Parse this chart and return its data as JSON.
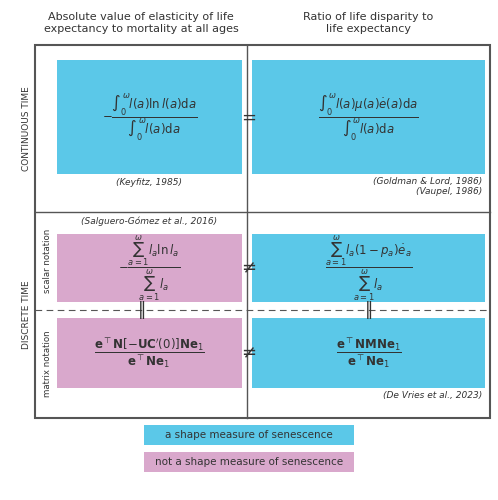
{
  "title_left": "Absolute value of elasticity of life\nexpectancy to mortality at all ages",
  "title_right": "Ratio of life disparity to\nlife expectancy",
  "row_label_continuous": "CONTINUOUS TIME",
  "row_label_discrete": "DISCRETE TIME",
  "label_scalar": "scalar notation",
  "label_matrix": "matrix notation",
  "cyan_color": "#5BC8E8",
  "pink_color": "#D9A8CC",
  "bg_color": "#FFFFFF",
  "border_color": "#555555",
  "text_color": "#333333",
  "formula_continuous_left": "$-\\dfrac{\\int_0^{\\omega} l(a)\\ln l(a)\\mathrm{d}a}{\\int_0^{\\omega} l(a)\\mathrm{d}a}$",
  "formula_continuous_right": "$\\dfrac{\\int_0^{\\omega} l(a)\\mu(a)\\dot{e}(a)\\mathrm{d}a}{\\int_0^{\\omega} l(a)\\mathrm{d}a}$",
  "formula_scalar_left": "$-\\dfrac{\\sum_{a=1}^{\\omega} l_a \\ln l_a}{\\sum_{a=1}^{\\omega} l_a}$",
  "formula_scalar_right": "$\\dfrac{\\sum_{a=1}^{\\omega} l_a(1-p_a)\\dot{e}_a}{\\sum_{a=1}^{\\omega} l_a}$",
  "formula_matrix_left": "$\\dfrac{\\mathbf{e}^\\top \\mathbf{N}[-\\mathbf{U}\\mathbf{C}'(0)]\\mathbf{N}\\mathbf{e}_1}{\\mathbf{e}^\\top \\mathbf{N}\\mathbf{e}_1}$",
  "formula_matrix_right": "$\\dfrac{\\mathbf{e}^\\top \\mathbf{N}\\mathbf{M}\\mathbf{N}\\mathbf{e}_1}{\\mathbf{e}^\\top \\mathbf{N}\\mathbf{e}_1}$",
  "cite_keyfitz": "(Keyfitz, 1985)",
  "cite_goldman": "(Goldman & Lord, 1986)\n(Vaupel, 1986)",
  "cite_salguero": "(Salguero-Gómez et al., 2016)",
  "cite_devries": "(De Vries et al., 2023)",
  "legend_cyan": "a shape measure of senescence",
  "legend_pink": "not a shape measure of senescence"
}
